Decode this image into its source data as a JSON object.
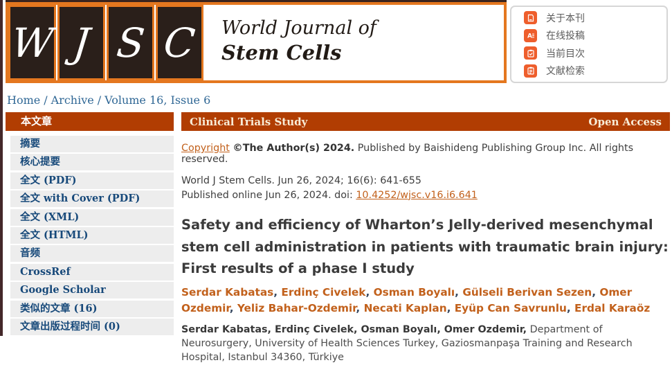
{
  "logo": {
    "letters": [
      "W",
      "J",
      "S",
      "C"
    ],
    "title_line1": "World Journal of",
    "title_line2": "Stem Cells"
  },
  "top_menu": {
    "items": [
      {
        "label": "关于本刊",
        "icon": "journal-info-icon"
      },
      {
        "label": "在线投稿",
        "icon": "online-submission-icon"
      },
      {
        "label": "当前目次",
        "icon": "current-issue-icon"
      },
      {
        "label": "文献检索",
        "icon": "literature-search-icon"
      }
    ]
  },
  "breadcrumb": {
    "home": "Home",
    "archive": "Archive",
    "current": "Volume 16, Issue 6",
    "separator": "/"
  },
  "sidebar": {
    "header": "本文章",
    "items": [
      "摘要",
      "核心提要",
      "全文 (PDF)",
      "全文 with Cover (PDF)",
      "全文 (XML)",
      "全文 (HTML)",
      "音频",
      "CrossRef",
      "Google Scholar",
      "类似的文章 (16)",
      "文章出版过程时间 (0)"
    ]
  },
  "article": {
    "category": "Clinical Trials Study",
    "access": "Open Access",
    "copyright_link": "Copyright",
    "copyright_bold": "©The Author(s) 2024.",
    "copyright_rest": "Published by Baishideng Publishing Group Inc. All rights reserved.",
    "citation": "World J Stem Cells. Jun 26, 2024; 16(6): 641-655",
    "published_prefix": "Published online Jun 26, 2024. doi: ",
    "doi": "10.4252/wjsc.v16.i6.641",
    "title": "Safety and efficiency of Wharton’s Jelly-derived mesenchymal stem cell administration in patients with traumatic brain injury: First results of a phase I study",
    "authors": [
      "Serdar Kabatas",
      "Erdinç Civelek",
      "Osman Boyalı",
      "Gülseli Berivan Sezen",
      "Omer Ozdemir",
      "Yeliz Bahar-Ozdemir",
      "Necati Kaplan",
      "Eyüp Can Savrunlu",
      "Erdal Karaöz"
    ],
    "affiliation_authors": "Serdar Kabatas, Erdinç Civelek, Osman Boyalı, Omer Ozdemir,",
    "affiliation_text": " Department of Neurosurgery, University of Health Sciences Turkey, Gaziosmanpaşa Training and Research Hospital, Istanbul 34360, Türkiye"
  },
  "colors": {
    "rust_bar": "#b13d02",
    "logo_border": "#e4771f",
    "tile_bg": "#2a1f1a",
    "menu_icon": "#ee5e2c",
    "link_orange": "#c2611c",
    "sidebar_text": "#17497a",
    "breadcrumb_blue": "#2f6795"
  }
}
